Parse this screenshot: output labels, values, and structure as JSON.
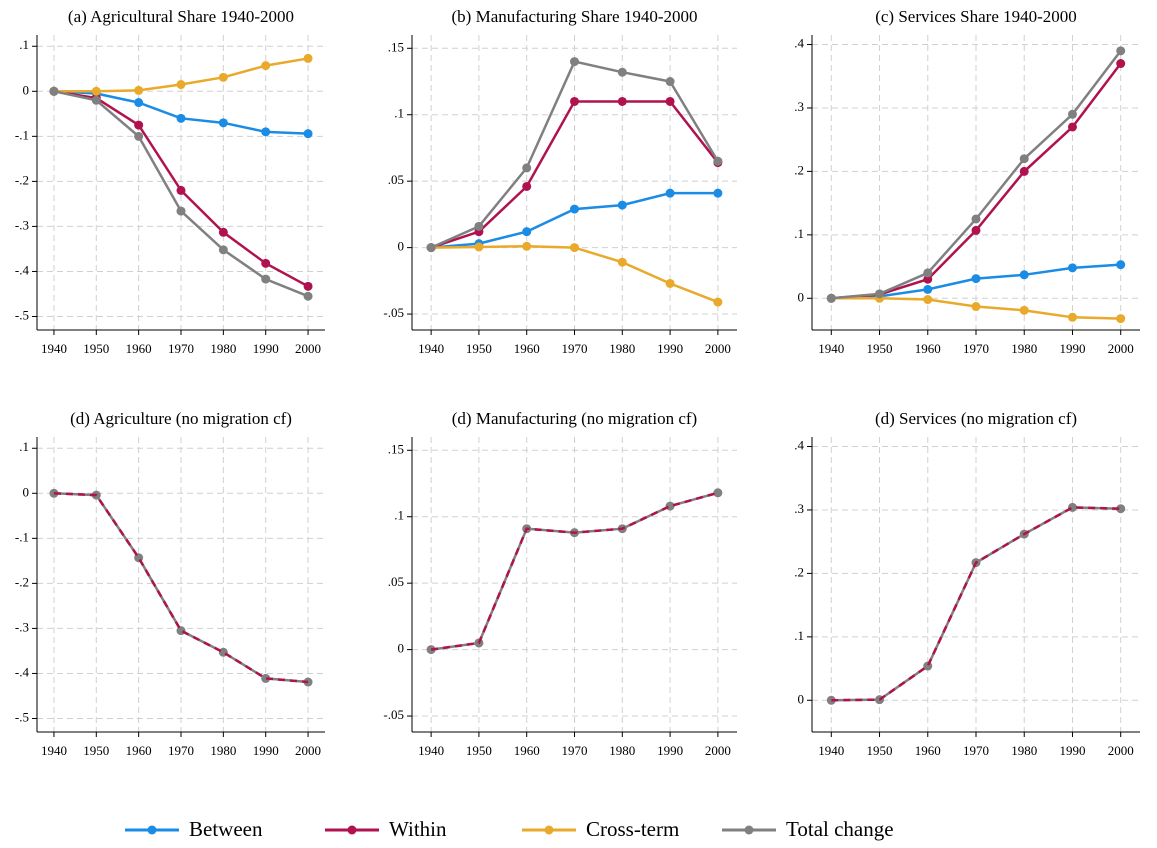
{
  "chart_data": [
    {
      "type": "line",
      "title": "(a) Agricultural Share 1940-2000",
      "x": [
        1940,
        1950,
        1960,
        1970,
        1980,
        1990,
        2000
      ],
      "xlim": [
        1936,
        2004
      ],
      "xticks": [
        1940,
        1950,
        1960,
        1970,
        1980,
        1990,
        2000
      ],
      "ylim": [
        -0.53,
        0.125
      ],
      "yticks": [
        {
          "value": 0.1,
          "label": ".1"
        },
        0,
        {
          "value": -0.1,
          "label": "-.1"
        },
        {
          "value": -0.2,
          "label": "-.2"
        },
        {
          "value": -0.3,
          "label": "-.3"
        },
        {
          "value": -0.4,
          "label": "-.4"
        },
        {
          "value": -0.5,
          "label": "-.5"
        }
      ],
      "grid": true,
      "series": [
        {
          "name": "Between",
          "color": "#1a8ce6",
          "values": [
            0,
            -0.005,
            -0.025,
            -0.06,
            -0.07,
            -0.09,
            -0.094
          ]
        },
        {
          "name": "Within",
          "color": "#b0124f",
          "values": [
            0,
            -0.015,
            -0.075,
            -0.22,
            -0.313,
            -0.382,
            -0.433
          ]
        },
        {
          "name": "Cross-term",
          "color": "#e9a92a",
          "values": [
            0,
            0,
            0.002,
            0.015,
            0.031,
            0.057,
            0.073
          ]
        },
        {
          "name": "Total change",
          "color": "#808080",
          "values": [
            0,
            -0.02,
            -0.1,
            -0.266,
            -0.352,
            -0.417,
            -0.455
          ]
        }
      ]
    },
    {
      "type": "line",
      "title": "(b) Manufacturing Share 1940-2000",
      "x": [
        1940,
        1950,
        1960,
        1970,
        1980,
        1990,
        2000
      ],
      "xlim": [
        1936,
        2004
      ],
      "xticks": [
        1940,
        1950,
        1960,
        1970,
        1980,
        1990,
        2000
      ],
      "ylim": [
        -0.062,
        0.16
      ],
      "yticks": [
        {
          "value": 0.15,
          "label": ".15"
        },
        {
          "value": 0.1,
          "label": ".1"
        },
        {
          "value": 0.05,
          "label": ".05"
        },
        0,
        {
          "value": -0.05,
          "label": "-.05"
        }
      ],
      "grid": true,
      "series": [
        {
          "name": "Between",
          "color": "#1a8ce6",
          "values": [
            0,
            0.003,
            0.012,
            0.029,
            0.032,
            0.041,
            0.041
          ]
        },
        {
          "name": "Within",
          "color": "#b0124f",
          "values": [
            0,
            0.012,
            0.046,
            0.11,
            0.11,
            0.11,
            0.064
          ]
        },
        {
          "name": "Cross-term",
          "color": "#e9a92a",
          "values": [
            0,
            0.0005,
            0.001,
            0,
            -0.011,
            -0.027,
            -0.041
          ]
        },
        {
          "name": "Total change",
          "color": "#808080",
          "values": [
            0,
            0.016,
            0.06,
            0.14,
            0.132,
            0.125,
            0.065
          ]
        }
      ]
    },
    {
      "type": "line",
      "title": "(c) Services Share 1940-2000",
      "x": [
        1940,
        1950,
        1960,
        1970,
        1980,
        1990,
        2000
      ],
      "xlim": [
        1936,
        2004
      ],
      "xticks": [
        1940,
        1950,
        1960,
        1970,
        1980,
        1990,
        2000
      ],
      "ylim": [
        -0.05,
        0.415
      ],
      "yticks": [
        {
          "value": 0.4,
          "label": ".4"
        },
        {
          "value": 0.3,
          "label": ".3"
        },
        {
          "value": 0.2,
          "label": ".2"
        },
        {
          "value": 0.1,
          "label": ".1"
        },
        0
      ],
      "grid": true,
      "series": [
        {
          "name": "Between",
          "color": "#1a8ce6",
          "values": [
            0,
            0.003,
            0.014,
            0.031,
            0.037,
            0.048,
            0.053
          ]
        },
        {
          "name": "Within",
          "color": "#b0124f",
          "values": [
            0,
            0.006,
            0.03,
            0.107,
            0.2,
            0.27,
            0.37
          ]
        },
        {
          "name": "Cross-term",
          "color": "#e9a92a",
          "values": [
            0,
            0,
            -0.002,
            -0.013,
            -0.019,
            -0.03,
            -0.032
          ]
        },
        {
          "name": "Total change",
          "color": "#808080",
          "values": [
            0,
            0.007,
            0.04,
            0.125,
            0.22,
            0.29,
            0.39
          ]
        }
      ]
    },
    {
      "type": "line",
      "title": "(d) Agriculture (no migration cf)",
      "x": [
        1940,
        1950,
        1960,
        1970,
        1980,
        1990,
        2000
      ],
      "xlim": [
        1936,
        2004
      ],
      "xticks": [
        1940,
        1950,
        1960,
        1970,
        1980,
        1990,
        2000
      ],
      "ylim": [
        -0.53,
        0.125
      ],
      "yticks": [
        {
          "value": 0.1,
          "label": ".1"
        },
        0,
        {
          "value": -0.1,
          "label": "-.1"
        },
        {
          "value": -0.2,
          "label": "-.2"
        },
        {
          "value": -0.3,
          "label": "-.3"
        },
        {
          "value": -0.4,
          "label": "-.4"
        },
        {
          "value": -0.5,
          "label": "-.5"
        }
      ],
      "grid": true,
      "series": [
        {
          "name": "Total change",
          "color": "#808080",
          "values": [
            0,
            -0.004,
            -0.143,
            -0.305,
            -0.353,
            -0.411,
            -0.419
          ]
        },
        {
          "name": "Within",
          "color": "#b0124f",
          "line_style": "dashed",
          "values": [
            0,
            -0.004,
            -0.143,
            -0.305,
            -0.353,
            -0.411,
            -0.419
          ]
        }
      ]
    },
    {
      "type": "line",
      "title": "(d) Manufacturing (no migration cf)",
      "x": [
        1940,
        1950,
        1960,
        1970,
        1980,
        1990,
        2000
      ],
      "xlim": [
        1936,
        2004
      ],
      "xticks": [
        1940,
        1950,
        1960,
        1970,
        1980,
        1990,
        2000
      ],
      "ylim": [
        -0.062,
        0.16
      ],
      "yticks": [
        {
          "value": 0.15,
          "label": ".15"
        },
        {
          "value": 0.1,
          "label": ".1"
        },
        {
          "value": 0.05,
          "label": ".05"
        },
        0,
        {
          "value": -0.05,
          "label": "-.05"
        }
      ],
      "grid": true,
      "series": [
        {
          "name": "Total change",
          "color": "#808080",
          "values": [
            0,
            0.005,
            0.091,
            0.088,
            0.091,
            0.108,
            0.118
          ]
        },
        {
          "name": "Within",
          "color": "#b0124f",
          "line_style": "dashed",
          "values": [
            0,
            0.005,
            0.091,
            0.088,
            0.091,
            0.108,
            0.118
          ]
        }
      ]
    },
    {
      "type": "line",
      "title": "(d) Services (no migration cf)",
      "x": [
        1940,
        1950,
        1960,
        1970,
        1980,
        1990,
        2000
      ],
      "xlim": [
        1936,
        2004
      ],
      "xticks": [
        1940,
        1950,
        1960,
        1970,
        1980,
        1990,
        2000
      ],
      "ylim": [
        -0.05,
        0.415
      ],
      "yticks": [
        {
          "value": 0.4,
          "label": ".4"
        },
        {
          "value": 0.3,
          "label": ".3"
        },
        {
          "value": 0.2,
          "label": ".2"
        },
        {
          "value": 0.1,
          "label": ".1"
        },
        0
      ],
      "grid": true,
      "series": [
        {
          "name": "Total change",
          "color": "#808080",
          "values": [
            0,
            0.001,
            0.054,
            0.217,
            0.262,
            0.304,
            0.302
          ]
        },
        {
          "name": "Within",
          "color": "#b0124f",
          "line_style": "dashed",
          "values": [
            0,
            0.001,
            0.054,
            0.217,
            0.262,
            0.304,
            0.302
          ]
        }
      ]
    }
  ]
}
